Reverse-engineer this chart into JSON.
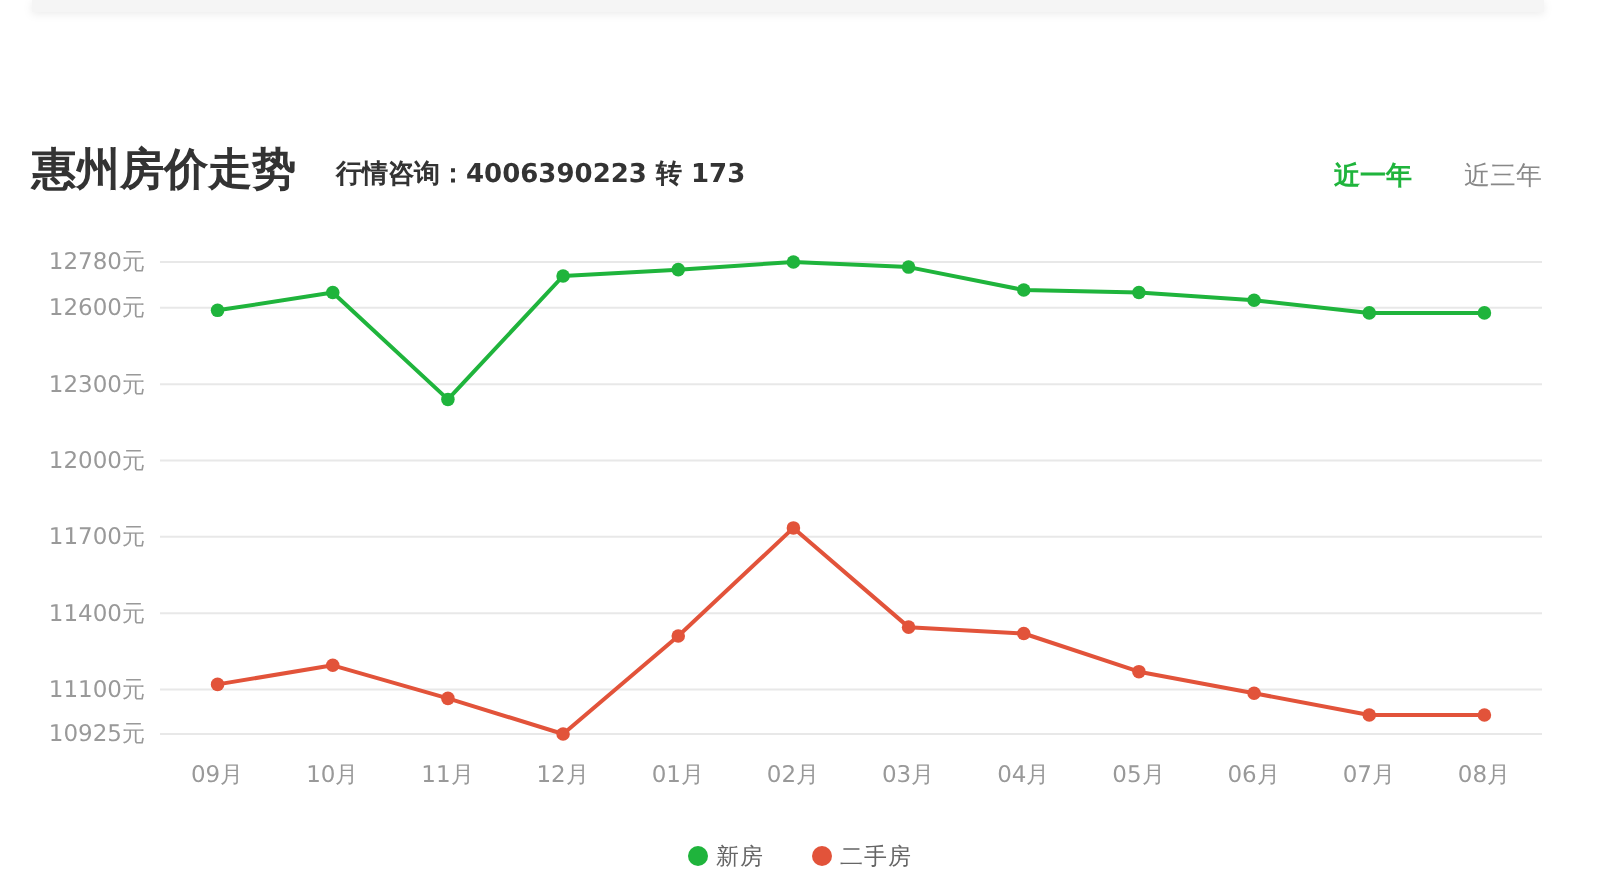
{
  "chart_data": {
    "type": "line",
    "title": "惠州房价走势",
    "subtitle": "行情咨询：4006390223 转 173",
    "annotations": [
      "近一年",
      "近三年"
    ],
    "categories": [
      "09月",
      "10月",
      "11月",
      "12月",
      "01月",
      "02月",
      "03月",
      "04月",
      "05月",
      "06月",
      "07月",
      "08月"
    ],
    "series": [
      {
        "name": "新房",
        "color": "#1fb43c",
        "values": [
          12590,
          12660,
          12240,
          12725,
          12750,
          12780,
          12760,
          12670,
          12660,
          12630,
          12580,
          12580
        ]
      },
      {
        "name": "二手房",
        "color": "#e2533a",
        "values": [
          11120,
          11195,
          11065,
          10925,
          11310,
          11735,
          11345,
          11320,
          11170,
          11085,
          11000,
          11000
        ]
      }
    ],
    "ylim": [
      10925,
      12780
    ],
    "yticks": [
      {
        "value": 10925,
        "label": "10925元"
      },
      {
        "value": 11100,
        "label": "11100元"
      },
      {
        "value": 11400,
        "label": "11400元"
      },
      {
        "value": 11700,
        "label": "11700元"
      },
      {
        "value": 12000,
        "label": "12000元"
      },
      {
        "value": 12300,
        "label": "12300元"
      },
      {
        "value": 12600,
        "label": "12600元"
      },
      {
        "value": 12780,
        "label": "12780元"
      }
    ],
    "grid": "y",
    "legend": "bottom",
    "marker": "circle",
    "line_style": "solid"
  }
}
